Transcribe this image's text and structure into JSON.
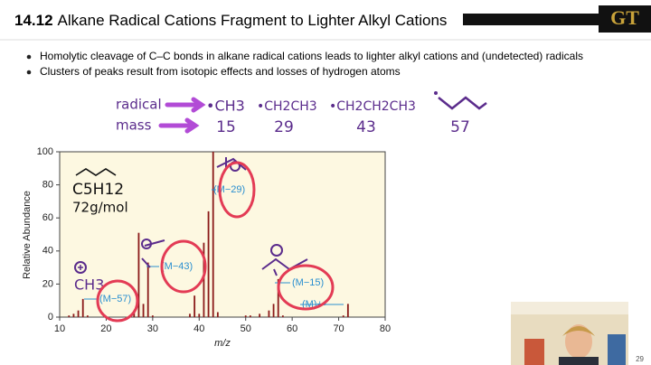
{
  "header": {
    "section": "14.12",
    "title": "Alkane Radical Cations Fragment to Lighter Alkyl Cations",
    "logo": "GT"
  },
  "bullets": [
    "Homolytic cleavage of C–C bonds in alkane radical cations leads to lighter alkyl cations and (undetected) radicals",
    "Clusters of peaks result from isotopic effects and losses of hydrogen atoms"
  ],
  "handwriting": {
    "row_labels": [
      "radical",
      "mass"
    ],
    "radicals": [
      "•CH3",
      "•CH2CH3",
      "•CH2CH2CH3"
    ],
    "masses": [
      "15",
      "29",
      "43",
      "57"
    ],
    "formula": "C5H12",
    "molar_mass": "72g/mol",
    "fragment": "CH3"
  },
  "chart_data": {
    "type": "bar",
    "x_label": "m/z",
    "y_label": "Relative Abundance",
    "x": [
      12,
      13,
      14,
      15,
      16,
      26,
      27,
      28,
      29,
      30,
      38,
      39,
      40,
      41,
      42,
      43,
      44,
      50,
      51,
      53,
      55,
      56,
      57,
      58,
      71,
      72
    ],
    "values": [
      1,
      2,
      4,
      11,
      1,
      4,
      51,
      8,
      33,
      1,
      2,
      13,
      2,
      45,
      64,
      100,
      3,
      1,
      1,
      2,
      4,
      8,
      23,
      1,
      1,
      8
    ],
    "color": "#8b1a1a",
    "xlim": [
      10,
      80
    ],
    "ylim": [
      0,
      100
    ],
    "xticks": [
      10,
      20,
      30,
      40,
      50,
      60,
      70,
      80
    ],
    "yticks": [
      0,
      20,
      40,
      60,
      80,
      100
    ],
    "annotations": [
      "(M−57)",
      "(M−43)",
      "(M−29)",
      "(M−15)",
      "(M)+•"
    ]
  },
  "page_number": "29"
}
